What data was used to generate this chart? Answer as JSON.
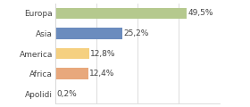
{
  "categories": [
    "Europa",
    "Asia",
    "America",
    "Africa",
    "Apolidi"
  ],
  "values": [
    49.5,
    25.2,
    12.8,
    12.4,
    0.2
  ],
  "labels": [
    "49,5%",
    "25,2%",
    "12,8%",
    "12,4%",
    "0,2%"
  ],
  "bar_colors": [
    "#b5c98e",
    "#6b8cbe",
    "#f5d080",
    "#e8a87c",
    "#e8e8e8"
  ],
  "background_color": "#ffffff",
  "xlim": [
    0,
    62
  ],
  "bar_height": 0.55,
  "label_fontsize": 6.5,
  "tick_fontsize": 6.5,
  "grid_color": "#d8d8d8",
  "grid_ticks": [
    0,
    15.5,
    31.0,
    46.5,
    62.0
  ]
}
